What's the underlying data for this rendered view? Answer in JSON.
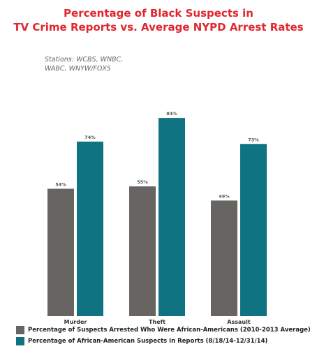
{
  "title_lines": [
    "Percentage of Black Suspects in",
    "TV Crime Reports vs. Average NYPD Arrest Rates"
  ],
  "note_lines": [
    "Stations: WCBS, WNBC,",
    "WABC, WNYW/FOX5"
  ],
  "chart_data": {
    "type": "bar",
    "title": "Percentage of Black Suspects in TV Crime Reports vs. Average NYPD Arrest Rates",
    "categories": [
      "Murder",
      "Theft",
      "Assault"
    ],
    "series": [
      {
        "name": "Percentage of Suspects Arrested Who Were African-Americans (2010-2013 Average)",
        "values": [
          54,
          55,
          49
        ],
        "labels": [
          "54%",
          "55%",
          "49%"
        ],
        "color": "#676462"
      },
      {
        "name": "Percentage of African-American Suspects in Reports (8/18/14-12/31/14)",
        "values": [
          74,
          84,
          73
        ],
        "labels": [
          "74%",
          "84%",
          "73%"
        ],
        "color": "#0f7381"
      }
    ],
    "ylim": [
      0,
      100
    ],
    "grid": false,
    "legend_position": "bottom-left"
  }
}
